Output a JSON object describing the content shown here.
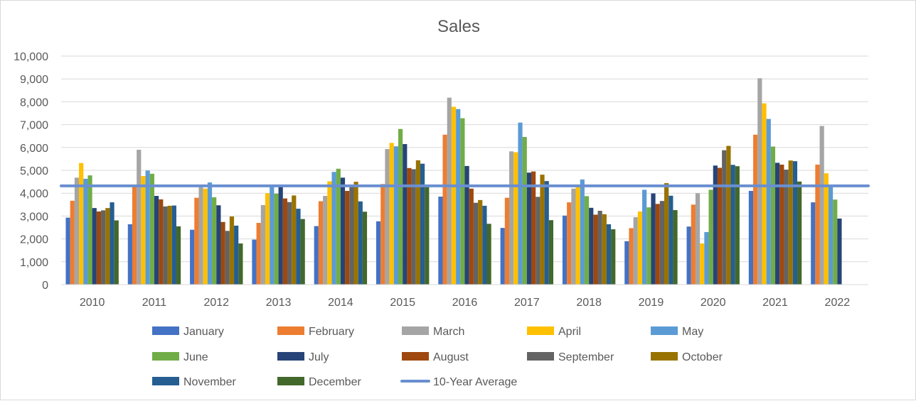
{
  "chart_data": {
    "type": "bar",
    "title": "Sales",
    "xlabel": "",
    "ylabel": "",
    "ylim": [
      0,
      10000
    ],
    "yticks": [
      0,
      1000,
      2000,
      3000,
      4000,
      5000,
      6000,
      7000,
      8000,
      9000,
      10000
    ],
    "ytick_labels": [
      "0",
      "1,000",
      "2,000",
      "3,000",
      "4,000",
      "5,000",
      "6,000",
      "7,000",
      "8,000",
      "9,000",
      "10,000"
    ],
    "grid": "horizontal",
    "legend_position": "bottom",
    "categories": [
      "2010",
      "2011",
      "2012",
      "2013",
      "2014",
      "2015",
      "2016",
      "2017",
      "2018",
      "2019",
      "2020",
      "2021",
      "2022"
    ],
    "series": [
      {
        "name": "January",
        "color": "#4472c4",
        "values": [
          2930,
          2640,
          2400,
          1970,
          2560,
          2770,
          3850,
          2480,
          3020,
          1900,
          2540,
          4100,
          3600
        ]
      },
      {
        "name": "February",
        "color": "#ed7d31",
        "values": [
          3670,
          4300,
          3800,
          2700,
          3650,
          4400,
          6560,
          3800,
          3600,
          2470,
          3500,
          6560,
          5250
        ]
      },
      {
        "name": "March",
        "color": "#a5a5a5",
        "values": [
          4680,
          5900,
          4300,
          3480,
          3880,
          5930,
          8180,
          5830,
          4200,
          2950,
          4000,
          9030,
          6940
        ]
      },
      {
        "name": "April",
        "color": "#ffc000",
        "values": [
          5320,
          4750,
          4200,
          4000,
          4520,
          6200,
          7780,
          5790,
          4300,
          3200,
          1800,
          7930,
          4870
        ]
      },
      {
        "name": "May",
        "color": "#5b9bd5",
        "values": [
          4630,
          4990,
          4470,
          4300,
          4930,
          6050,
          7680,
          7090,
          4600,
          4150,
          2300,
          7250,
          4300
        ]
      },
      {
        "name": "June",
        "color": "#70ad47",
        "values": [
          4780,
          4850,
          3820,
          3980,
          5070,
          6810,
          7280,
          6460,
          3870,
          3380,
          4150,
          6040,
          3720
        ]
      },
      {
        "name": "July",
        "color": "#264478",
        "values": [
          3350,
          3880,
          3470,
          4300,
          4680,
          6150,
          5190,
          4900,
          3360,
          3990,
          5210,
          5330,
          2890
        ]
      },
      {
        "name": "August",
        "color": "#9e480e",
        "values": [
          3200,
          3730,
          2740,
          3770,
          4100,
          5100,
          4200,
          4950,
          3060,
          3530,
          5110,
          5250,
          null
        ]
      },
      {
        "name": "September",
        "color": "#636363",
        "values": [
          3250,
          3420,
          2350,
          3610,
          4290,
          5050,
          3580,
          3840,
          3230,
          3660,
          5880,
          5030,
          null
        ]
      },
      {
        "name": "October",
        "color": "#997300",
        "values": [
          3350,
          3450,
          2980,
          3900,
          4500,
          5440,
          3700,
          4810,
          3080,
          4440,
          6070,
          5430,
          null
        ]
      },
      {
        "name": "November",
        "color": "#255e91",
        "values": [
          3600,
          3460,
          2580,
          3320,
          3640,
          5290,
          3450,
          4530,
          2640,
          3890,
          5240,
          5400,
          null
        ]
      },
      {
        "name": "December",
        "color": "#43682b",
        "values": [
          2810,
          2550,
          1800,
          2870,
          3190,
          4280,
          2660,
          2820,
          2420,
          3260,
          5180,
          4510,
          null
        ]
      }
    ],
    "reference_line": {
      "name": "10-Year Average",
      "color": "#6a8fd0",
      "value": 4320
    }
  }
}
